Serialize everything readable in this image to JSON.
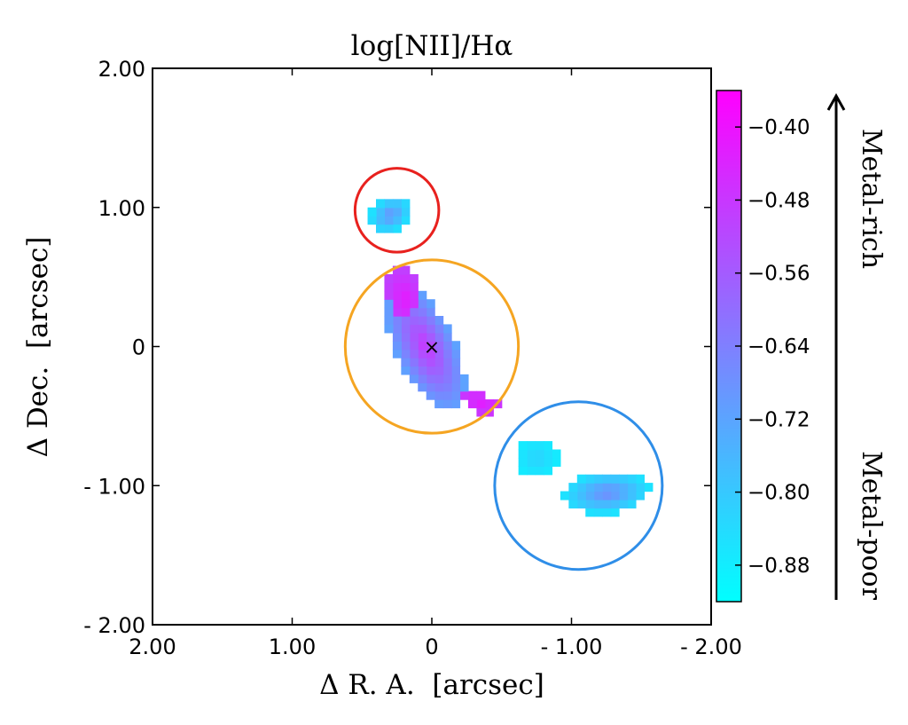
{
  "chart_data": {
    "type": "heatmap",
    "title": "log[NII]/Hα",
    "xlabel": "Δ R. A.  [arcsec]",
    "ylabel": "Δ Dec.  [arcsec]",
    "xlim": [
      2.0,
      -2.0
    ],
    "ylim": [
      -2.0,
      2.0
    ],
    "x_ticks": [
      {
        "value": 2.0,
        "label": "2.00"
      },
      {
        "value": 1.0,
        "label": "1.00"
      },
      {
        "value": 0.0,
        "label": "0"
      },
      {
        "value": -1.0,
        "label": "- 1.00"
      },
      {
        "value": -2.0,
        "label": "- 2.00"
      }
    ],
    "y_ticks": [
      {
        "value": 2.0,
        "label": "2.00"
      },
      {
        "value": 1.0,
        "label": "1.00"
      },
      {
        "value": 0.0,
        "label": "0"
      },
      {
        "value": -1.0,
        "label": "- 1.00"
      },
      {
        "value": -2.0,
        "label": "- 2.00"
      }
    ],
    "colorbar": {
      "range": [
        -0.92,
        -0.36
      ],
      "ticks": [
        {
          "value": -0.4,
          "label": "−0.40"
        },
        {
          "value": -0.48,
          "label": "−0.48"
        },
        {
          "value": -0.56,
          "label": "−0.56"
        },
        {
          "value": -0.64,
          "label": "−0.64"
        },
        {
          "value": -0.72,
          "label": "−0.72"
        },
        {
          "value": -0.8,
          "label": "−0.80"
        },
        {
          "value": -0.88,
          "label": "−0.88"
        }
      ],
      "colors": [
        "#00ffff",
        "#ff00ff"
      ],
      "annotation_top": "Metal-rich",
      "annotation_bottom": "Metal-poor"
    },
    "regions": [
      {
        "color": "#e8211e",
        "center": [
          0.25,
          0.98
        ],
        "radius": 0.3
      },
      {
        "color": "#f5a522",
        "center": [
          0.0,
          0.0
        ],
        "radius": 0.62
      },
      {
        "color": "#2f8ee8",
        "center": [
          -1.05,
          -1.0
        ],
        "radius": 0.6
      }
    ],
    "center_marker": {
      "x": 0.0,
      "y": 0.0,
      "symbol": "×"
    },
    "clumps": [
      {
        "cx": 0.3,
        "cy": 0.95,
        "rx": 0.16,
        "ry": 0.12,
        "angle": -35,
        "v_center": -0.68,
        "v_edge": -0.86
      },
      {
        "cx": 0.05,
        "cy": 0.0,
        "rx": 0.5,
        "ry": 0.21,
        "angle": 65,
        "v_center": -0.48,
        "v_edge": -0.72
      },
      {
        "cx": 0.2,
        "cy": 0.35,
        "rx": 0.22,
        "ry": 0.12,
        "angle": 80,
        "v_center": -0.42,
        "v_edge": -0.5
      },
      {
        "cx": -0.35,
        "cy": -0.4,
        "rx": 0.14,
        "ry": 0.07,
        "angle": 20,
        "v_center": -0.42,
        "v_edge": -0.48
      },
      {
        "cx": -0.75,
        "cy": -0.8,
        "rx": 0.16,
        "ry": 0.14,
        "angle": 0,
        "v_center": -0.82,
        "v_edge": -0.88
      },
      {
        "cx": -1.25,
        "cy": -1.05,
        "rx": 0.31,
        "ry": 0.15,
        "angle": -5,
        "v_center": -0.66,
        "v_edge": -0.86
      }
    ]
  }
}
